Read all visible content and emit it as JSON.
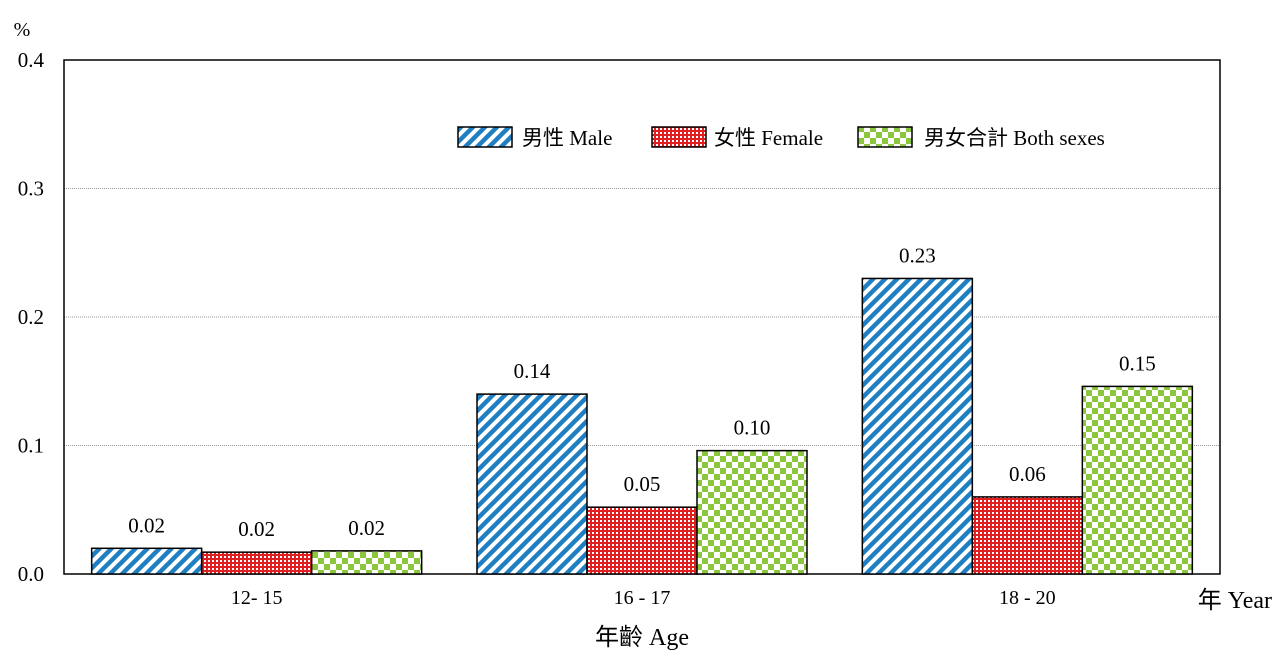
{
  "chart_data": {
    "type": "bar",
    "title": "",
    "ylabel": "%",
    "xlabel": "年齡 Age",
    "x_unit": "年 Year",
    "ylim": [
      0,
      0.4
    ],
    "yticks": [
      "0.0",
      "0.1",
      "0.2",
      "0.3",
      "0.4"
    ],
    "grid": true,
    "legend_position": "top-right",
    "categories": [
      "12- 15",
      "16 - 17",
      "18 - 20"
    ],
    "series": [
      {
        "name": "男性 Male",
        "values": [
          0.02,
          0.14,
          0.23
        ],
        "labels": [
          "0.02",
          "0.14",
          "0.23"
        ],
        "color": "#1f7fc2",
        "pattern": "diagonal-stripes"
      },
      {
        "name": "女性 Female",
        "values": [
          0.017,
          0.052,
          0.06
        ],
        "labels": [
          "0.02",
          "0.05",
          "0.06"
        ],
        "color": "#e02020",
        "pattern": "dense-dots"
      },
      {
        "name": "男女合計 Both sexes",
        "values": [
          0.018,
          0.096,
          0.146
        ],
        "labels": [
          "0.02",
          "0.10",
          "0.15"
        ],
        "color": "#8cc63f",
        "pattern": "checker"
      }
    ]
  }
}
